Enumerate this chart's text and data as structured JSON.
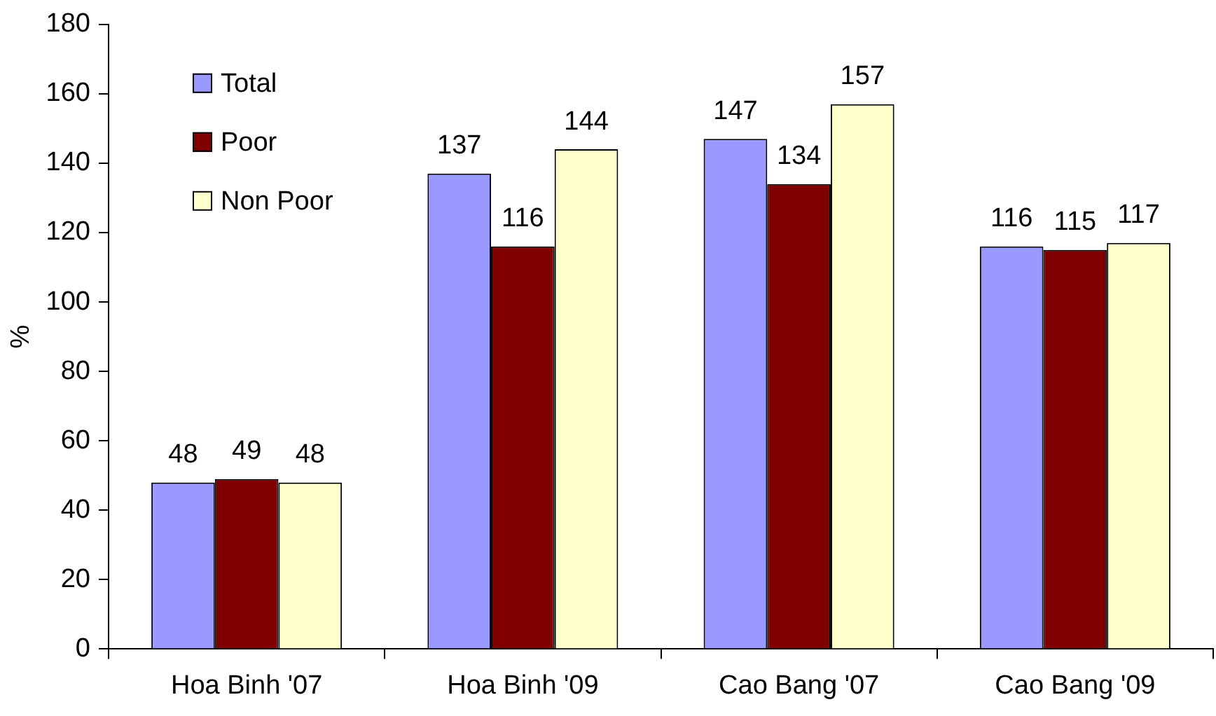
{
  "chart_data": {
    "type": "bar",
    "ylabel": "%",
    "categories": [
      "Hoa Binh '07",
      "Hoa Binh '09",
      "Cao Bang '07",
      "Cao Bang '09"
    ],
    "series": [
      {
        "name": "Total",
        "color": "#9999ff",
        "values": [
          48,
          137,
          147,
          116
        ]
      },
      {
        "name": "Poor",
        "color": "#800000",
        "values": [
          49,
          116,
          134,
          115
        ]
      },
      {
        "name": "Non Poor",
        "color": "#ffffcc",
        "values": [
          48,
          144,
          157,
          117
        ]
      }
    ],
    "ylim": [
      0,
      180
    ],
    "yticks": [
      0,
      20,
      40,
      60,
      80,
      100,
      120,
      140,
      160,
      180
    ],
    "grid": false,
    "legend": "top left",
    "data_labels": true
  }
}
